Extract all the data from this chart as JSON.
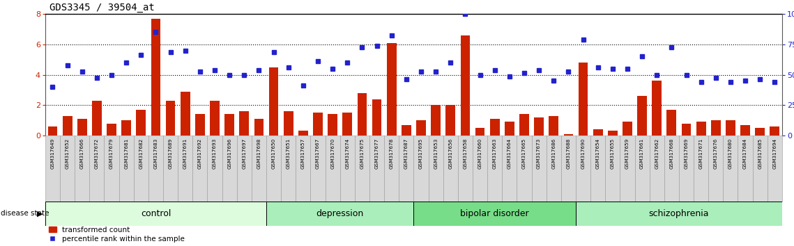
{
  "title": "GDS3345 / 39504_at",
  "samples": [
    "GSM317649",
    "GSM317652",
    "GSM317666",
    "GSM317672",
    "GSM317679",
    "GSM317681",
    "GSM317682",
    "GSM317683",
    "GSM317689",
    "GSM317691",
    "GSM317692",
    "GSM317693",
    "GSM317696",
    "GSM317697",
    "GSM317698",
    "GSM317650",
    "GSM317651",
    "GSM317657",
    "GSM317667",
    "GSM317670",
    "GSM317674",
    "GSM317675",
    "GSM317677",
    "GSM317678",
    "GSM317687",
    "GSM317695",
    "GSM317653",
    "GSM317656",
    "GSM317658",
    "GSM317660",
    "GSM317663",
    "GSM317664",
    "GSM317665",
    "GSM317673",
    "GSM317686",
    "GSM317688",
    "GSM317690",
    "GSM317654",
    "GSM317655",
    "GSM317659",
    "GSM317661",
    "GSM317662",
    "GSM317668",
    "GSM317669",
    "GSM317671",
    "GSM317676",
    "GSM317680",
    "GSM317684",
    "GSM317685",
    "GSM317694"
  ],
  "bar_values": [
    0.6,
    1.3,
    1.1,
    2.3,
    0.8,
    1.0,
    1.7,
    7.7,
    2.3,
    2.9,
    1.4,
    2.3,
    1.4,
    1.6,
    1.1,
    4.5,
    1.6,
    0.3,
    1.5,
    1.4,
    1.5,
    2.8,
    2.4,
    6.1,
    0.7,
    1.0,
    2.0,
    2.0,
    6.6,
    0.5,
    1.1,
    0.9,
    1.4,
    1.2,
    1.3,
    0.1,
    4.8,
    0.4,
    0.3,
    0.9,
    2.6,
    3.6,
    1.7,
    0.8,
    0.9,
    1.0,
    1.0,
    0.7,
    0.5,
    0.6
  ],
  "percentile_values": [
    3.2,
    4.6,
    4.2,
    3.8,
    4.0,
    4.8,
    5.3,
    6.8,
    5.5,
    5.6,
    4.2,
    4.3,
    4.0,
    4.0,
    4.3,
    5.5,
    4.5,
    3.3,
    4.9,
    4.4,
    4.8,
    5.8,
    5.9,
    6.6,
    3.7,
    4.2,
    4.2,
    4.8,
    8.0,
    4.0,
    4.3,
    3.9,
    4.1,
    4.3,
    3.6,
    4.2,
    6.3,
    4.5,
    4.4,
    4.4,
    5.2,
    4.0,
    5.8,
    4.0,
    3.5,
    3.8,
    3.5,
    3.6,
    3.7,
    3.5
  ],
  "groups": [
    {
      "name": "control",
      "start": 0,
      "end": 15
    },
    {
      "name": "depression",
      "start": 15,
      "end": 25
    },
    {
      "name": "bipolar disorder",
      "start": 25,
      "end": 36
    },
    {
      "name": "schizophrenia",
      "start": 36,
      "end": 50
    }
  ],
  "group_colors": [
    "#ddfcdd",
    "#aaeebb",
    "#77dd88",
    "#aaeebb"
  ],
  "bar_color": "#cc2200",
  "dot_color": "#2222cc",
  "title_fontsize": 10
}
